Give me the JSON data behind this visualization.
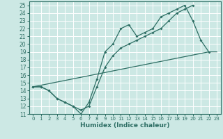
{
  "xlabel": "Humidex (Indice chaleur)",
  "background_color": "#cce8e4",
  "grid_color": "#ffffff",
  "line_color": "#2d6e64",
  "xlim": [
    -0.5,
    23.5
  ],
  "ylim": [
    11,
    25.5
  ],
  "xticks": [
    0,
    1,
    2,
    3,
    4,
    5,
    6,
    7,
    8,
    9,
    10,
    11,
    12,
    13,
    14,
    15,
    16,
    17,
    18,
    19,
    20,
    21,
    22,
    23
  ],
  "yticks": [
    11,
    12,
    13,
    14,
    15,
    16,
    17,
    18,
    19,
    20,
    21,
    22,
    23,
    24,
    25
  ],
  "line1_x": [
    0,
    1,
    2,
    3,
    4,
    5,
    6,
    7,
    8,
    9,
    10,
    11,
    12,
    13,
    14,
    15,
    16,
    17,
    18,
    19,
    20,
    21,
    22
  ],
  "line1_y": [
    14.5,
    14.5,
    14.0,
    13.0,
    12.5,
    12.0,
    11.0,
    12.5,
    15.5,
    19.0,
    20.0,
    22.0,
    22.5,
    21.0,
    21.5,
    22.0,
    23.5,
    24.0,
    24.5,
    25.0,
    23.0,
    20.5,
    19.0
  ],
  "line2_x": [
    0,
    1,
    2,
    3,
    4,
    5,
    6,
    7,
    8,
    9,
    10,
    11,
    12,
    13,
    14,
    15,
    16,
    17,
    18,
    19,
    20
  ],
  "line2_y": [
    14.5,
    14.5,
    14.0,
    13.0,
    12.5,
    12.0,
    11.5,
    12.0,
    14.5,
    17.0,
    18.5,
    19.5,
    20.0,
    20.5,
    21.0,
    21.5,
    22.0,
    23.0,
    24.0,
    24.5,
    25.0
  ],
  "line3_x": [
    0,
    22,
    23
  ],
  "line3_y": [
    14.5,
    19.0,
    19.0
  ]
}
